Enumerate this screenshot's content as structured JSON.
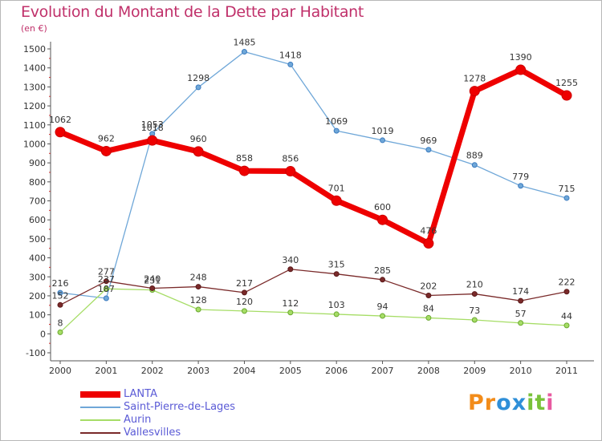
{
  "chart_data": {
    "type": "line",
    "title": "Evolution du Montant de la Dette par Habitant",
    "unit_label": "(en €)",
    "x": [
      "2000",
      "2001",
      "2002",
      "2003",
      "2004",
      "2005",
      "2006",
      "2007",
      "2008",
      "2009",
      "2010",
      "2011"
    ],
    "yticks": [
      "-100",
      "0",
      "100",
      "200",
      "300",
      "400",
      "500",
      "600",
      "700",
      "800",
      "900",
      "1000",
      "1100",
      "1200",
      "1300",
      "1400",
      "1500"
    ],
    "ylim": [
      -100,
      1500
    ],
    "grid": false,
    "legend": "bottom-left",
    "series": [
      {
        "name": "Saint-Pierre-de-Lages",
        "color": "#6fa7d8",
        "values": [
          216,
          187,
          1053,
          1298,
          1485,
          1418,
          1069,
          1019,
          969,
          889,
          779,
          715
        ]
      },
      {
        "name": "Aurin",
        "color": "#a6dd66",
        "values": [
          8,
          237,
          231,
          128,
          120,
          112,
          103,
          94,
          84,
          73,
          57,
          44
        ]
      },
      {
        "name": "Vallesvilles",
        "color": "#7a2a2a",
        "values": [
          152,
          277,
          240,
          248,
          217,
          340,
          315,
          285,
          202,
          210,
          174,
          222
        ]
      },
      {
        "name": "LANTA",
        "color": "#ee0000",
        "values": [
          1062,
          962,
          1018,
          960,
          858,
          856,
          701,
          600,
          476,
          1278,
          1390,
          1255
        ]
      }
    ],
    "data_labels": {
      "Saint-Pierre-de-Lages": [
        "216",
        "187",
        "1053",
        "1298",
        "1485",
        "1418",
        "1069",
        "1019",
        "969",
        "889",
        "779",
        "715"
      ],
      "Aurin": [
        "8",
        "237",
        "231",
        "128",
        "120",
        "112",
        "103",
        "94",
        "84",
        "73",
        "57",
        "44"
      ],
      "Vallesvilles": [
        "152",
        "277",
        "240",
        "248",
        "217",
        "340",
        "315",
        "285",
        "202",
        "210",
        "174",
        "222"
      ],
      "LANTA": [
        "1062",
        "962",
        "1018",
        "960",
        "858",
        "856",
        "701",
        "600",
        "476",
        "1278",
        "1390",
        "1255"
      ]
    }
  },
  "legend": {
    "items": [
      {
        "label": "LANTA",
        "color": "#ee0000"
      },
      {
        "label": "Saint-Pierre-de-Lages",
        "color": "#6fa7d8"
      },
      {
        "label": "Aurin",
        "color": "#a6dd66"
      },
      {
        "label": "Vallesvilles",
        "color": "#7a2a2a"
      }
    ]
  },
  "brand": {
    "text": "Proxiti",
    "letters": [
      {
        "ch": "P",
        "color": "#f28c1a"
      },
      {
        "ch": "r",
        "color": "#f28c1a"
      },
      {
        "ch": "o",
        "color": "#2f8fd8"
      },
      {
        "ch": "x",
        "color": "#2f8fd8"
      },
      {
        "ch": "i",
        "color": "#79c23a"
      },
      {
        "ch": "t",
        "color": "#79c23a"
      },
      {
        "ch": "i",
        "color": "#e85aa0"
      }
    ]
  }
}
